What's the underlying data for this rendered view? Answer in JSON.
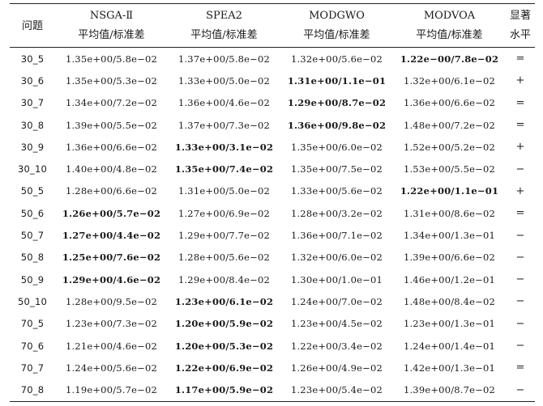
{
  "header": {
    "problem": "问题",
    "algorithms": [
      "NSGA-Ⅱ",
      "SPEA2",
      "MODGWO",
      "MODVOA"
    ],
    "stat_label": "平均值/标准差",
    "significance_line1": "显著",
    "significance_line2": "水平"
  },
  "rows": [
    {
      "problem": "30_5",
      "values": [
        "1.35e+00/5.8e−02",
        "1.37e+00/5.8e−02",
        "1.32e+00/5.6e−02",
        "1.22e−00/7.8e−02"
      ],
      "best": 3,
      "sig": "="
    },
    {
      "problem": "30_6",
      "values": [
        "1.35e+00/5.3e−02",
        "1.33e+00/5.0e−02",
        "1.31e+00/1.1e−01",
        "1.32e+00/6.1e−02"
      ],
      "best": 2,
      "sig": "+"
    },
    {
      "problem": "30_7",
      "values": [
        "1.34e+00/7.2e−02",
        "1.36e+00/4.6e−02",
        "1.29e+00/8.7e−02",
        "1.36e+00/6.6e−02"
      ],
      "best": 2,
      "sig": "="
    },
    {
      "problem": "30_8",
      "values": [
        "1.39e+00/5.5e−02",
        "1.37e+00/7.3e−02",
        "1.36e+00/9.8e−02",
        "1.48e+00/7.2e−02"
      ],
      "best": 2,
      "sig": "="
    },
    {
      "problem": "30_9",
      "values": [
        "1.36e+00/6.6e−02",
        "1.33e+00/3.1e−02",
        "1.35e+00/6.0e−02",
        "1.52e+00/5.2e−02"
      ],
      "best": 1,
      "sig": "+"
    },
    {
      "problem": "30_10",
      "values": [
        "1.40e+00/4.8e−02",
        "1.35e+00/7.4e−02",
        "1.35e+00/7.5e−02",
        "1.53e+00/5.5e−02"
      ],
      "best": 1,
      "sig": "−"
    },
    {
      "problem": "50_5",
      "values": [
        "1.28e+00/6.6e−02",
        "1.31e+00/5.0e−02",
        "1.33e+00/5.6e−02",
        "1.22e+00/1.1e−01"
      ],
      "best": 3,
      "sig": "+"
    },
    {
      "problem": "50_6",
      "values": [
        "1.26e+00/5.7e−02",
        "1.27e+00/6.9e−02",
        "1.28e+00/3.2e−02",
        "1.31e+00/8.6e−02"
      ],
      "best": 0,
      "sig": "="
    },
    {
      "problem": "50_7",
      "values": [
        "1.27e+00/4.4e−02",
        "1.29e+00/7.7e−02",
        "1.36e+00/7.1e−02",
        "1.34e+00/1.3e−01"
      ],
      "best": 0,
      "sig": "−"
    },
    {
      "problem": "50_8",
      "values": [
        "1.25e+00/7.6e−02",
        "1.28e+00/5.6e−02",
        "1.32e+00/6.0e−02",
        "1.39e+00/6.6e−02"
      ],
      "best": 0,
      "sig": "−"
    },
    {
      "problem": "50_9",
      "values": [
        "1.29e+00/4.6e−02",
        "1.29e+00/8.4e−02",
        "1.30e+00/1.0e−01",
        "1.46e+00/1.2e−01"
      ],
      "best": 0,
      "sig": "−"
    },
    {
      "problem": "50_10",
      "values": [
        "1.28e+00/9.5e−02",
        "1.23e+00/6.1e−02",
        "1.24e+00/7.0e−02",
        "1.48e+00/8.4e−02"
      ],
      "best": 1,
      "sig": "−"
    },
    {
      "problem": "70_5",
      "values": [
        "1.23e+00/7.3e−02",
        "1.20e+00/5.9e−02",
        "1.23e+00/4.5e−02",
        "1.23e+00/1.3e−01"
      ],
      "best": 1,
      "sig": "−"
    },
    {
      "problem": "70_6",
      "values": [
        "1.21e+00/4.6e−02",
        "1.20e+00/5.3e−02",
        "1.22e+00/3.4e−02",
        "1.24e+00/1.4e−01"
      ],
      "best": 1,
      "sig": "−"
    },
    {
      "problem": "70_7",
      "values": [
        "1.24e+00/5.6e−02",
        "1.22e+00/6.9e−02",
        "1.26e+00/4.9e−02",
        "1.42e+00/1.3e−01"
      ],
      "best": 1,
      "sig": "="
    },
    {
      "problem": "70_8",
      "values": [
        "1.19e+00/5.7e−02",
        "1.17e+00/5.9e−02",
        "1.23e+00/5.4e−02",
        "1.39e+00/8.7e−02"
      ],
      "best": 1,
      "sig": "−"
    }
  ]
}
